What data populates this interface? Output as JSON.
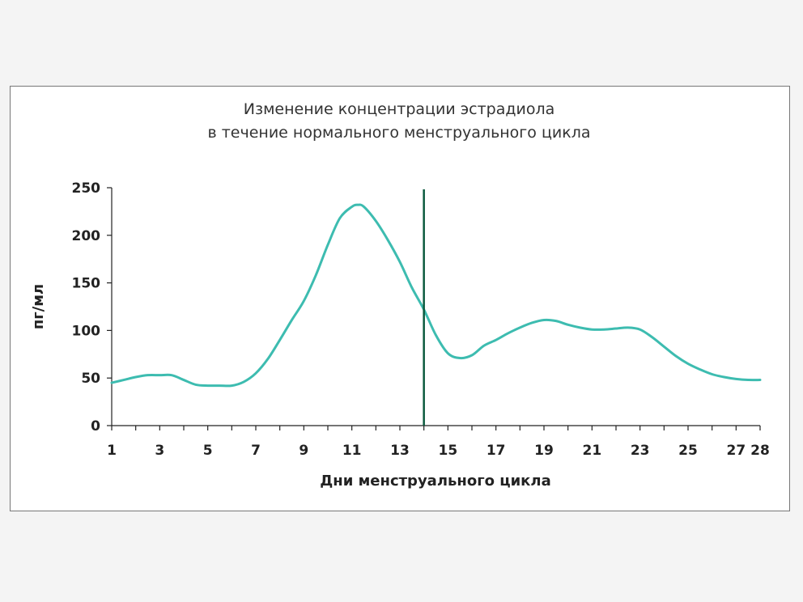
{
  "chart_data": {
    "type": "line",
    "title": "Изменение концентрации эстрадиола",
    "subtitle": "в течение нормального менструального цикла",
    "xlabel": "Дни менструального цикла",
    "ylabel": "пг/мл",
    "xlim": [
      1,
      28
    ],
    "ylim": [
      0,
      250
    ],
    "x_ticks": [
      "1",
      "3",
      "5",
      "7",
      "9",
      "11",
      "13",
      "15",
      "17",
      "19",
      "21",
      "23",
      "25",
      "27",
      "28"
    ],
    "y_ticks": [
      "0",
      "50",
      "100",
      "150",
      "200",
      "250"
    ],
    "grid": false,
    "line_color": "#3dbcb0",
    "marker_line": {
      "x": 14,
      "color": "#0b5a3e"
    },
    "series": [
      {
        "x": [
          1,
          1.5,
          2,
          2.5,
          3,
          3.5,
          4,
          4.5,
          5,
          5.5,
          6,
          6.5,
          7,
          7.5,
          8,
          8.5,
          9,
          9.5,
          10,
          10.5,
          11,
          11.25,
          11.5,
          12,
          12.5,
          13,
          13.5,
          14,
          14.5,
          15,
          15.5,
          16,
          16.5,
          17,
          17.5,
          18,
          18.5,
          19,
          19.5,
          20,
          20.5,
          21,
          21.5,
          22,
          22.5,
          23,
          23.5,
          24,
          24.5,
          25,
          25.5,
          26,
          26.5,
          27,
          27.5,
          28
        ],
        "y": [
          45,
          48,
          51,
          53,
          53,
          53,
          48,
          43,
          42,
          42,
          42,
          46,
          55,
          70,
          90,
          111,
          131,
          158,
          190,
          218,
          230,
          232,
          230,
          215,
          195,
          172,
          145,
          122,
          95,
          76,
          71,
          74,
          84,
          90,
          97,
          103,
          108,
          111,
          110,
          106,
          103,
          101,
          101,
          102,
          103,
          101,
          93,
          83,
          73,
          65,
          59,
          54,
          51,
          49,
          48,
          48
        ]
      }
    ]
  }
}
